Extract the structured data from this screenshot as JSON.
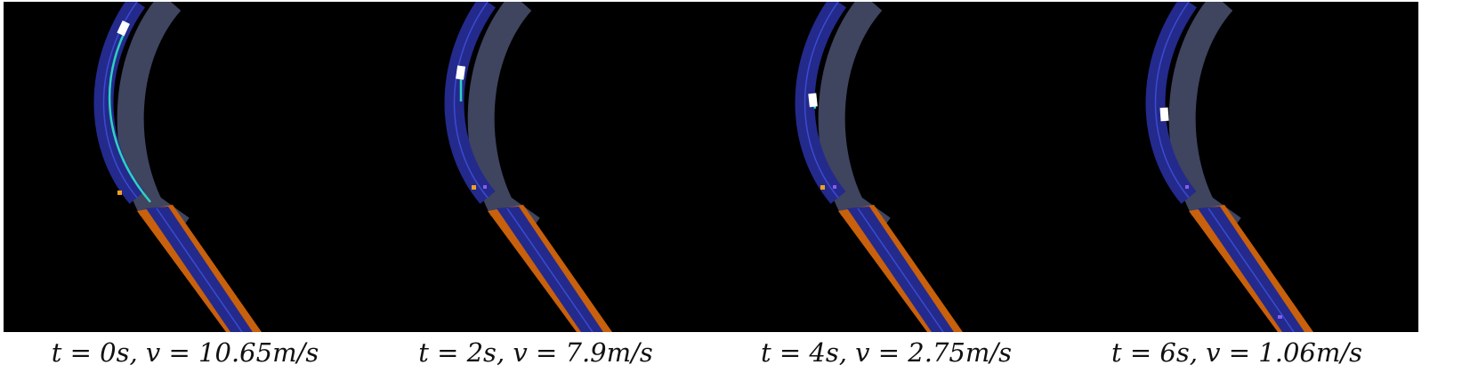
{
  "panels": [
    {
      "caption": "t = 0s, v = 10.65m/s",
      "time_s": 0,
      "speed_mps": 10.65
    },
    {
      "caption": "t = 2s, v = 7.9m/s",
      "time_s": 2,
      "speed_mps": 7.9
    },
    {
      "caption": "t = 4s, v = 2.75m/s",
      "time_s": 4,
      "speed_mps": 2.75
    },
    {
      "caption": "t = 6s, v = 1.06m/s",
      "time_s": 6,
      "speed_mps": 1.06
    }
  ],
  "colors": {
    "background": "#000000",
    "lane": "#232a8c",
    "lane_line": "#3b4bd0",
    "opposing_lane": "#4a5070",
    "orange_zone": "#c8600c",
    "vehicle": "#ffffff",
    "trajectory": "#2fd0c0",
    "agent_orange": "#f0a020",
    "agent_purple": "#8a5cf0"
  }
}
